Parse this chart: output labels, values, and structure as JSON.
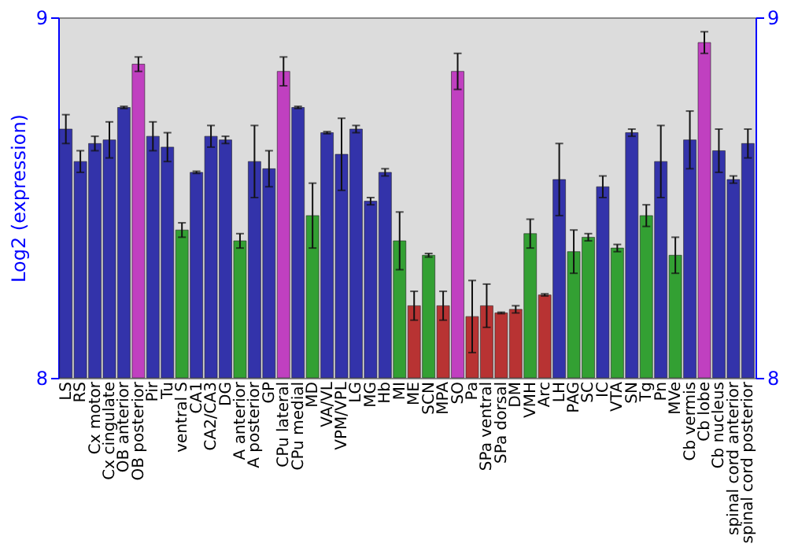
{
  "chart_data": {
    "type": "bar",
    "ylabel": "Log2 (expression)",
    "categories": [
      "LS",
      "RS",
      "Cx motor",
      "Cx cingulate",
      "OB anterior",
      "OB posterior",
      "Pir",
      "Tu",
      "ventral S",
      "CA1",
      "CA2/CA3",
      "DG",
      "A anterior",
      "A posterior",
      "GP",
      "CPu lateral",
      "CPu medial",
      "MD",
      "VA/VL",
      "VPM/VPL",
      "LG",
      "MG",
      "Hb",
      "MI",
      "ME",
      "SCN",
      "MPA",
      "SO",
      "Pa",
      "SPa ventral",
      "SPa dorsal",
      "DM",
      "VMH",
      "Arc",
      "LH",
      "PAG",
      "SC",
      "IC",
      "VTA",
      "SN",
      "Tg",
      "Pn",
      "MVe",
      "Cb vermis",
      "Cb lobe",
      "Cb nucleus",
      "spinal cord anterior",
      "spinal cord posterior"
    ],
    "values": [
      8.69,
      8.6,
      8.65,
      8.66,
      8.75,
      8.87,
      8.67,
      8.64,
      8.41,
      8.57,
      8.67,
      8.66,
      8.38,
      8.6,
      8.58,
      8.85,
      8.75,
      8.45,
      8.68,
      8.62,
      8.69,
      8.49,
      8.57,
      8.38,
      8.2,
      8.34,
      8.2,
      8.85,
      8.17,
      8.2,
      8.18,
      8.19,
      8.4,
      8.23,
      8.55,
      8.35,
      8.39,
      8.53,
      8.36,
      8.68,
      8.45,
      8.6,
      8.34,
      8.66,
      8.93,
      8.63,
      8.55,
      8.65
    ],
    "errors": [
      0.04,
      0.03,
      0.02,
      0.05,
      0.003,
      0.02,
      0.04,
      0.04,
      0.02,
      0.003,
      0.03,
      0.01,
      0.02,
      0.1,
      0.05,
      0.04,
      0.003,
      0.09,
      0.003,
      0.1,
      0.01,
      0.01,
      0.01,
      0.08,
      0.04,
      0.005,
      0.04,
      0.05,
      0.1,
      0.06,
      0.002,
      0.01,
      0.04,
      0.003,
      0.1,
      0.06,
      0.01,
      0.03,
      0.01,
      0.01,
      0.03,
      0.1,
      0.05,
      0.08,
      0.03,
      0.06,
      0.01,
      0.04
    ],
    "colors": [
      "#3333aa",
      "#3333aa",
      "#3333aa",
      "#3333aa",
      "#3333aa",
      "#c040c0",
      "#3333aa",
      "#3333aa",
      "#33a033",
      "#3333aa",
      "#3333aa",
      "#3333aa",
      "#33a033",
      "#3333aa",
      "#3333aa",
      "#c040c0",
      "#3333aa",
      "#33a033",
      "#3333aa",
      "#3333aa",
      "#3333aa",
      "#3333aa",
      "#3333aa",
      "#33a033",
      "#b83333",
      "#33a033",
      "#b83333",
      "#c040c0",
      "#b83333",
      "#b83333",
      "#b83333",
      "#b83333",
      "#33a033",
      "#b83333",
      "#3333aa",
      "#33a033",
      "#33a033",
      "#3333aa",
      "#33a033",
      "#3333aa",
      "#33a033",
      "#3333aa",
      "#33a033",
      "#3333aa",
      "#c040c0",
      "#3333aa",
      "#3333aa",
      "#3333aa"
    ],
    "ylim": [
      8,
      9
    ],
    "yticks": [
      8,
      9
    ],
    "y2lim": [
      8,
      9
    ],
    "y2ticks": [
      8,
      9
    ],
    "grid": false
  }
}
